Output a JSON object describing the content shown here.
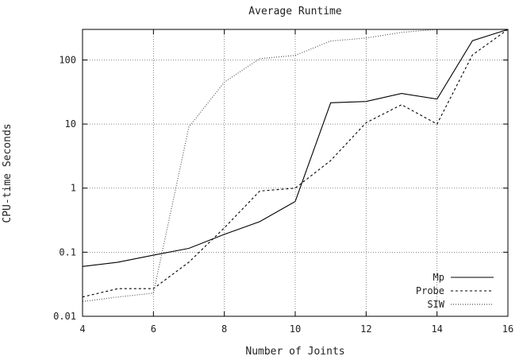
{
  "chart_data": {
    "type": "line",
    "title": "Average Runtime",
    "xlabel": "Number of Joints",
    "ylabel": "CPU-time Seconds",
    "xlim": [
      4,
      16
    ],
    "ylim": [
      0.01,
      300
    ],
    "y_scale": "log",
    "grid": true,
    "legend_position": "bottom-right",
    "x_ticks": [
      4,
      6,
      8,
      10,
      12,
      14,
      16
    ],
    "x_tick_labels": [
      "4",
      "6",
      "8",
      "10",
      "12",
      "14",
      "16"
    ],
    "y_ticks": [
      0.01,
      0.1,
      1,
      10,
      100
    ],
    "y_tick_labels": [
      "0.01",
      "0.1",
      "1",
      "10",
      "100"
    ],
    "x": [
      4,
      5,
      6,
      7,
      8,
      9,
      10,
      11,
      12,
      13,
      14,
      15,
      16
    ],
    "series": [
      {
        "name": "Mp",
        "style": "solid",
        "color": "#000000",
        "values": [
          0.06,
          0.07,
          0.09,
          0.115,
          0.19,
          0.3,
          0.62,
          21.5,
          22.5,
          30,
          24.5,
          200,
          300
        ]
      },
      {
        "name": "Probe",
        "style": "dashed",
        "color": "#000000",
        "values": [
          0.02,
          0.027,
          0.027,
          0.07,
          0.24,
          0.9,
          1.0,
          2.7,
          10.5,
          20,
          10,
          120,
          300
        ]
      },
      {
        "name": "SIW",
        "style": "dotted",
        "color": "#555555",
        "values": [
          0.017,
          0.02,
          0.023,
          9,
          45,
          105,
          118,
          198,
          220,
          270,
          300,
          300,
          300
        ]
      }
    ]
  }
}
